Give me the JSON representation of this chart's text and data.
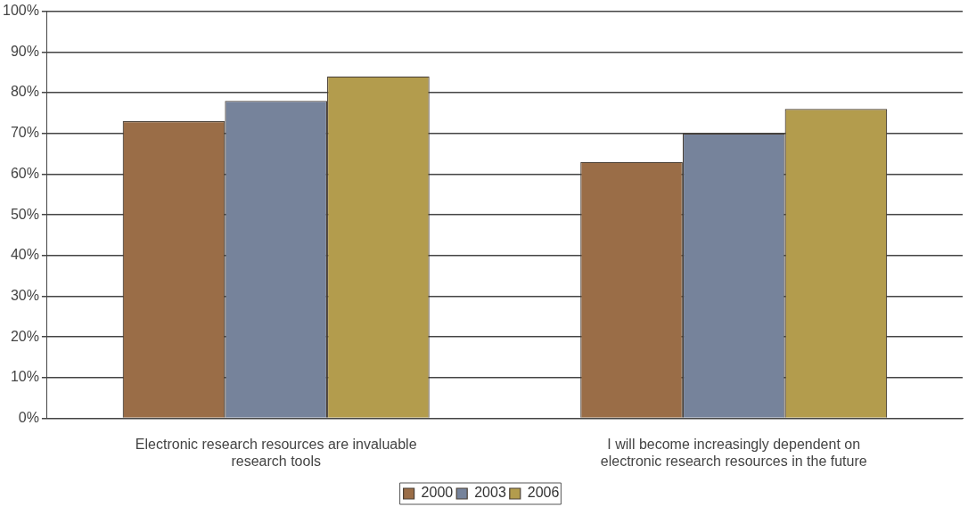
{
  "chart_data": {
    "type": "bar",
    "categories": [
      "Electronic research resources are invaluable research tools",
      "I will become increasingly dependent on electronic research resources in the future"
    ],
    "series": [
      {
        "name": "2000",
        "color": "#9a6d47",
        "values": [
          73,
          63
        ]
      },
      {
        "name": "2003",
        "color": "#76839b",
        "values": [
          78,
          70
        ]
      },
      {
        "name": "2006",
        "color": "#b39c4d",
        "values": [
          84,
          76
        ]
      }
    ],
    "ylim": [
      0,
      100
    ],
    "yticks": [
      {
        "value": 0,
        "label": "0%"
      },
      {
        "value": 10,
        "label": "10%"
      },
      {
        "value": 20,
        "label": "20%"
      },
      {
        "value": 30,
        "label": "30%"
      },
      {
        "value": 40,
        "label": "40%"
      },
      {
        "value": 50,
        "label": "50%"
      },
      {
        "value": 60,
        "label": "60%"
      },
      {
        "value": 70,
        "label": "70%"
      },
      {
        "value": 80,
        "label": "80%"
      },
      {
        "value": 90,
        "label": "90%"
      },
      {
        "value": 100,
        "label": "100%"
      }
    ],
    "grid": "y",
    "legend": "bottom"
  }
}
